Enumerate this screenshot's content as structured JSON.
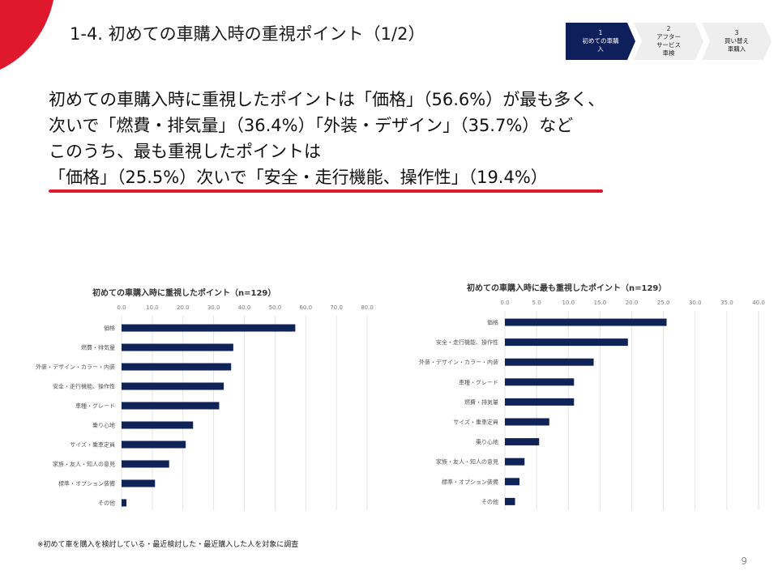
{
  "header": {
    "title": "1-4. 初めての車購入時の重視ポイント（1/2）",
    "accent_color": "#e0182d"
  },
  "steps": [
    {
      "num": "1",
      "lines": [
        "初めての車購",
        "入"
      ],
      "active": true
    },
    {
      "num": "2",
      "lines": [
        "アフター",
        "サービス",
        "車検"
      ],
      "active": false
    },
    {
      "num": "3",
      "lines": [
        "買い替え",
        "車購入"
      ],
      "active": false
    }
  ],
  "headline": {
    "lines": [
      "初めての車購入時に重視したポイントは「価格」（56.6%）が最も多く、",
      "次いで「燃費・排気量」（36.4%）「外装・デザイン」（35.7%）など",
      "このうち、最も重視したポイントは",
      "「価格」（25.5%）次いで「安全・走行機能、操作性」（19.4%）"
    ]
  },
  "chart_data": [
    {
      "type": "bar",
      "orientation": "horizontal",
      "title": "初めての車購入時に重視したポイント（n=129）",
      "categories": [
        "価格",
        "燃費・排気量",
        "外装・デザイン・カラー・内装",
        "安全・走行機能、操作性",
        "車種・グレード",
        "乗り心地",
        "サイズ・乗車定員",
        "家族・友人・知人の意見",
        "標準・オプション装備",
        "その他"
      ],
      "values": [
        56.6,
        36.4,
        35.7,
        33.3,
        31.8,
        23.3,
        20.9,
        15.5,
        10.9,
        1.6
      ],
      "xlim": [
        0,
        80
      ],
      "ticks": [
        "0.0",
        "10.0",
        "20.0",
        "30.0",
        "40.0",
        "50.0",
        "60.0",
        "70.0",
        "80.0"
      ],
      "grid": true,
      "bar_color": "#0f2358"
    },
    {
      "type": "bar",
      "orientation": "horizontal",
      "title": "初めての車購入時に最も重視したポイント（n=129）",
      "categories": [
        "価格",
        "安全・走行機能、操作性",
        "外装・デザイン・カラー・内装",
        "車種・グレード",
        "燃費・排気量",
        "サイズ・乗車定員",
        "乗り心地",
        "家族・友人・知人の意見",
        "標準・オプション装備",
        "その他"
      ],
      "values": [
        25.5,
        19.4,
        14.0,
        10.9,
        10.9,
        7.0,
        5.4,
        3.1,
        2.3,
        1.6
      ],
      "xlim": [
        0,
        40
      ],
      "ticks": [
        "0.0",
        "5.0",
        "10.0",
        "15.0",
        "20.0",
        "25.0",
        "30.0",
        "35.0",
        "40.0"
      ],
      "grid": true,
      "bar_color": "#0f2358"
    }
  ],
  "footnote": "※初めて車を購入を検討している・最近検討した・最近購入した人を対象に調査",
  "page_number": "9"
}
